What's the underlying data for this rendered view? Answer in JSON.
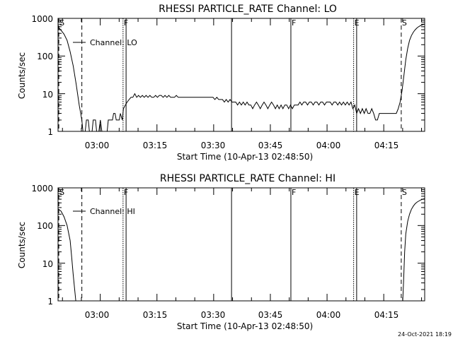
{
  "footer_timestamp": "24-Oct-2021 18:19",
  "chart_data": [
    {
      "type": "line",
      "title": "RHESSI PARTICLE_RATE Channel: LO",
      "xlabel": "Start Time (10-Apr-13 02:48:50)",
      "ylabel": "Counts/sec",
      "yscale": "log",
      "ylim": [
        1,
        1000
      ],
      "xlim_minutes_after_02_48_50": [
        0,
        97
      ],
      "x_ticks": [
        {
          "label": "03:00",
          "minutes": 11.17
        },
        {
          "label": "03:15",
          "minutes": 26.17
        },
        {
          "label": "03:30",
          "minutes": 41.17
        },
        {
          "label": "03:45",
          "minutes": 56.17
        },
        {
          "label": "04:00",
          "minutes": 71.17
        },
        {
          "label": "04:15",
          "minutes": 86.17
        }
      ],
      "y_ticks": [
        {
          "label": "1",
          "value": 1
        },
        {
          "label": "10",
          "value": 10
        },
        {
          "label": "100",
          "value": 100
        },
        {
          "label": "1000",
          "value": 1000
        }
      ],
      "legend": {
        "label": "Channel: LO",
        "position": "top-left"
      },
      "markers": [
        {
          "label": "S",
          "minutes": 0.2,
          "style": "dashed"
        },
        {
          "label": "",
          "minutes": 6.3,
          "style": "dashed"
        },
        {
          "label": "F",
          "minutes": 17.2,
          "style": "dotted"
        },
        {
          "label": "",
          "minutes": 18.0,
          "style": "solid"
        },
        {
          "label": "",
          "minutes": 45.9,
          "style": "solid"
        },
        {
          "label": "F",
          "minutes": 61.6,
          "style": "solid"
        },
        {
          "label": "E",
          "minutes": 78.2,
          "style": "dotted"
        },
        {
          "label": "",
          "minutes": 79.0,
          "style": "solid"
        },
        {
          "label": "S",
          "minutes": 90.8,
          "style": "dashed"
        },
        {
          "label": "",
          "minutes": 97.5,
          "style": "dashdot"
        }
      ],
      "series": [
        {
          "name": "Channel: LO",
          "points": [
            [
              0.0,
              600
            ],
            [
              0.8,
              480
            ],
            [
              1.6,
              380
            ],
            [
              2.4,
              260
            ],
            [
              3.2,
              130
            ],
            [
              4.0,
              55
            ],
            [
              4.8,
              18
            ],
            [
              5.6,
              5
            ],
            [
              6.3,
              2
            ],
            [
              6.6,
              1
            ],
            [
              7.2,
              1
            ],
            [
              7.5,
              2
            ],
            [
              8.0,
              2
            ],
            [
              8.3,
              1
            ],
            [
              9.0,
              1
            ],
            [
              9.3,
              2
            ],
            [
              9.9,
              2
            ],
            [
              10.2,
              1
            ],
            [
              10.8,
              1
            ],
            [
              11.2,
              2
            ],
            [
              11.6,
              1
            ],
            [
              13.0,
              1
            ],
            [
              13.3,
              2
            ],
            [
              14.4,
              2
            ],
            [
              14.7,
              3
            ],
            [
              15.1,
              3
            ],
            [
              15.4,
              2
            ],
            [
              16.2,
              2
            ],
            [
              16.5,
              3
            ],
            [
              17.0,
              2
            ],
            [
              17.3,
              4
            ],
            [
              17.8,
              5
            ],
            [
              18.3,
              6
            ],
            [
              18.8,
              7
            ],
            [
              19.3,
              8
            ],
            [
              19.8,
              8
            ],
            [
              20.3,
              10
            ],
            [
              20.8,
              8
            ],
            [
              21.3,
              9
            ],
            [
              21.8,
              8
            ],
            [
              22.3,
              9
            ],
            [
              22.8,
              8
            ],
            [
              23.3,
              9
            ],
            [
              23.8,
              8
            ],
            [
              24.3,
              9
            ],
            [
              24.8,
              8
            ],
            [
              25.3,
              8
            ],
            [
              25.8,
              9
            ],
            [
              26.3,
              8
            ],
            [
              26.8,
              9
            ],
            [
              27.3,
              9
            ],
            [
              27.8,
              8
            ],
            [
              28.3,
              9
            ],
            [
              28.8,
              8
            ],
            [
              29.3,
              9
            ],
            [
              29.8,
              8
            ],
            [
              30.3,
              8
            ],
            [
              30.8,
              8
            ],
            [
              31.3,
              9
            ],
            [
              31.8,
              8
            ],
            [
              32.3,
              8
            ],
            [
              33.0,
              8
            ],
            [
              34.0,
              8
            ],
            [
              35.0,
              8
            ],
            [
              36.0,
              8
            ],
            [
              37.0,
              8
            ],
            [
              38.0,
              8
            ],
            [
              39.0,
              8
            ],
            [
              40.0,
              8
            ],
            [
              41.0,
              8
            ],
            [
              41.5,
              7
            ],
            [
              42.0,
              8
            ],
            [
              42.5,
              7
            ],
            [
              43.0,
              7
            ],
            [
              43.5,
              7
            ],
            [
              44.0,
              6
            ],
            [
              44.5,
              7
            ],
            [
              45.0,
              6
            ],
            [
              45.5,
              7
            ],
            [
              46.0,
              6
            ],
            [
              46.5,
              6
            ],
            [
              47.0,
              6
            ],
            [
              47.5,
              5
            ],
            [
              48.0,
              6
            ],
            [
              48.5,
              5
            ],
            [
              49.0,
              6
            ],
            [
              49.5,
              5
            ],
            [
              50.0,
              6
            ],
            [
              50.5,
              5
            ],
            [
              51.0,
              5
            ],
            [
              51.5,
              4
            ],
            [
              52.0,
              5
            ],
            [
              52.5,
              6
            ],
            [
              53.0,
              5
            ],
            [
              53.5,
              4
            ],
            [
              54.0,
              5
            ],
            [
              54.5,
              6
            ],
            [
              55.0,
              5
            ],
            [
              55.5,
              4
            ],
            [
              56.0,
              5
            ],
            [
              56.5,
              6
            ],
            [
              57.0,
              5
            ],
            [
              57.5,
              4
            ],
            [
              58.0,
              5
            ],
            [
              58.5,
              4
            ],
            [
              59.0,
              5
            ],
            [
              59.5,
              4
            ],
            [
              60.0,
              5
            ],
            [
              60.5,
              5
            ],
            [
              61.0,
              4
            ],
            [
              61.5,
              5
            ],
            [
              62.0,
              4
            ],
            [
              62.5,
              5
            ],
            [
              63.0,
              5
            ],
            [
              63.5,
              5
            ],
            [
              64.0,
              6
            ],
            [
              64.5,
              5
            ],
            [
              65.0,
              6
            ],
            [
              65.5,
              6
            ],
            [
              66.0,
              5
            ],
            [
              66.5,
              6
            ],
            [
              67.0,
              6
            ],
            [
              67.5,
              5
            ],
            [
              68.0,
              6
            ],
            [
              68.5,
              6
            ],
            [
              69.0,
              5
            ],
            [
              69.5,
              6
            ],
            [
              70.0,
              6
            ],
            [
              70.5,
              5
            ],
            [
              71.0,
              6
            ],
            [
              71.5,
              6
            ],
            [
              72.0,
              6
            ],
            [
              72.5,
              5
            ],
            [
              73.0,
              6
            ],
            [
              73.5,
              6
            ],
            [
              74.0,
              5
            ],
            [
              74.5,
              6
            ],
            [
              75.0,
              5
            ],
            [
              75.5,
              6
            ],
            [
              76.0,
              5
            ],
            [
              76.5,
              6
            ],
            [
              77.0,
              5
            ],
            [
              77.5,
              6
            ],
            [
              78.0,
              4
            ],
            [
              78.5,
              5
            ],
            [
              79.0,
              3
            ],
            [
              79.5,
              4
            ],
            [
              80.0,
              3
            ],
            [
              80.5,
              4
            ],
            [
              81.0,
              3
            ],
            [
              81.5,
              4
            ],
            [
              82.0,
              3
            ],
            [
              82.5,
              3
            ],
            [
              83.0,
              4
            ],
            [
              83.5,
              3
            ],
            [
              84.0,
              2
            ],
            [
              84.5,
              2
            ],
            [
              85.0,
              3
            ],
            [
              85.5,
              3
            ],
            [
              86.0,
              3
            ],
            [
              86.5,
              3
            ],
            [
              87.0,
              3
            ],
            [
              87.5,
              3
            ],
            [
              88.0,
              3
            ],
            [
              88.5,
              3
            ],
            [
              89.0,
              3
            ],
            [
              89.5,
              3
            ],
            [
              90.0,
              4
            ],
            [
              90.5,
              6
            ],
            [
              91.0,
              12
            ],
            [
              91.5,
              30
            ],
            [
              92.0,
              80
            ],
            [
              92.5,
              160
            ],
            [
              93.0,
              260
            ],
            [
              93.5,
              350
            ],
            [
              94.0,
              430
            ],
            [
              94.5,
              500
            ],
            [
              95.0,
              560
            ],
            [
              95.5,
              610
            ],
            [
              96.0,
              650
            ],
            [
              96.5,
              680
            ],
            [
              97.0,
              700
            ]
          ]
        }
      ]
    },
    {
      "type": "line",
      "title": "RHESSI PARTICLE_RATE Channel: HI",
      "xlabel": "Start Time (10-Apr-13 02:48:50)",
      "ylabel": "Counts/sec",
      "yscale": "log",
      "ylim": [
        1,
        1000
      ],
      "xlim_minutes_after_02_48_50": [
        0,
        97
      ],
      "x_ticks": [
        {
          "label": "03:00",
          "minutes": 11.17
        },
        {
          "label": "03:15",
          "minutes": 26.17
        },
        {
          "label": "03:30",
          "minutes": 41.17
        },
        {
          "label": "03:45",
          "minutes": 56.17
        },
        {
          "label": "04:00",
          "minutes": 71.17
        },
        {
          "label": "04:15",
          "minutes": 86.17
        }
      ],
      "y_ticks": [
        {
          "label": "1",
          "value": 1
        },
        {
          "label": "10",
          "value": 10
        },
        {
          "label": "100",
          "value": 100
        },
        {
          "label": "1000",
          "value": 1000
        }
      ],
      "legend": {
        "label": "Channel: HI",
        "position": "top-left"
      },
      "markers": [
        {
          "label": "S",
          "minutes": 0.2,
          "style": "dashed"
        },
        {
          "label": "",
          "minutes": 6.3,
          "style": "dashed"
        },
        {
          "label": "F",
          "minutes": 17.2,
          "style": "dotted"
        },
        {
          "label": "",
          "minutes": 18.0,
          "style": "solid"
        },
        {
          "label": "",
          "minutes": 45.9,
          "style": "solid"
        },
        {
          "label": "F",
          "minutes": 61.6,
          "style": "solid"
        },
        {
          "label": "E",
          "minutes": 78.2,
          "style": "dotted"
        },
        {
          "label": "",
          "minutes": 79.0,
          "style": "solid"
        },
        {
          "label": "S",
          "minutes": 90.8,
          "style": "dashed"
        },
        {
          "label": "",
          "minutes": 97.5,
          "style": "dashdot"
        }
      ],
      "series": [
        {
          "name": "Channel: HI",
          "points": [
            [
              0.0,
              280
            ],
            [
              0.8,
              240
            ],
            [
              1.6,
              170
            ],
            [
              2.4,
              100
            ],
            [
              3.2,
              40
            ],
            [
              3.6,
              15
            ],
            [
              4.0,
              5
            ],
            [
              4.4,
              2
            ],
            [
              4.7,
              1
            ]
          ]
        },
        {
          "name": "Channel: HI",
          "points": [
            [
              91.2,
              1
            ],
            [
              91.4,
              3
            ],
            [
              91.7,
              20
            ],
            [
              92.0,
              60
            ],
            [
              92.5,
              130
            ],
            [
              93.0,
              200
            ],
            [
              93.5,
              270
            ],
            [
              94.0,
              330
            ],
            [
              94.5,
              380
            ],
            [
              95.0,
              420
            ],
            [
              95.5,
              450
            ],
            [
              96.0,
              480
            ],
            [
              96.5,
              500
            ],
            [
              97.0,
              520
            ]
          ]
        }
      ]
    }
  ]
}
